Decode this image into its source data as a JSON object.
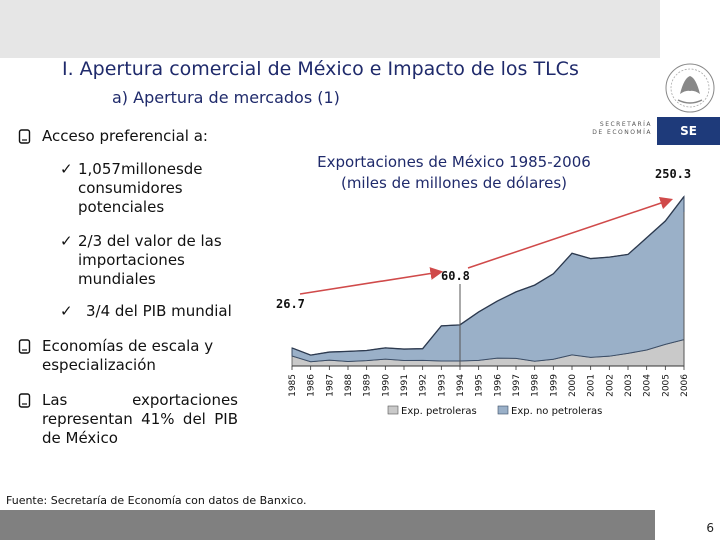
{
  "slide": {
    "title": "I. Apertura comercial de México e Impacto de los TLCs",
    "subtitle": "a) Apertura de mercados (1)",
    "page_number": "6",
    "source": "Fuente: Secretaría de Economía con datos de Banxico.",
    "logo_text": {
      "secretaria": "SECRETARÍA",
      "de_economia": "DE ECONOMÍA",
      "badge": "SE"
    }
  },
  "bullets": [
    {
      "text": "Acceso preferencial a:"
    },
    {
      "text": "Economías de escala y especialización"
    },
    {
      "text": "Las exportaciones representan 41% del PIB de México"
    }
  ],
  "subbullets": [
    {
      "line1": "1,057millonesde",
      "line2": "consumidores",
      "line3": "potenciales"
    },
    {
      "line1": "2/3 del valor de las",
      "line2": "importaciones",
      "line3": "mundiales"
    },
    {
      "line1": "3/4 del PIB mundial"
    }
  ],
  "chart_data": {
    "type": "area",
    "title": "Exportaciones de México 1985-2006 (miles de millones de dólares)",
    "title_line1": "Exportaciones de México 1985-2006",
    "title_line2": "(miles de millones de dólares)",
    "categories": [
      "1985",
      "1986",
      "1987",
      "1988",
      "1989",
      "1990",
      "1991",
      "1992",
      "1993",
      "1994",
      "1995",
      "1996",
      "1997",
      "1998",
      "1999",
      "2000",
      "2001",
      "2002",
      "2003",
      "2004",
      "2005",
      "2006"
    ],
    "series": [
      {
        "name": "Exp. petroleras",
        "values": [
          14.8,
          6.3,
          8.6,
          6.7,
          7.9,
          10.1,
          8.2,
          8.3,
          7.4,
          7.4,
          8.4,
          11.7,
          11.3,
          7.1,
          9.9,
          16.4,
          12.8,
          14.5,
          18.6,
          23.7,
          31.9,
          39.0
        ]
      },
      {
        "name": "Exp. no petroleras",
        "values": [
          11.9,
          9.8,
          12.0,
          14.9,
          15.0,
          16.7,
          16.8,
          17.3,
          51.9,
          53.4,
          71.5,
          84.3,
          98.2,
          112.4,
          126.3,
          150.1,
          145.9,
          146.3,
          146.2,
          165.7,
          182.3,
          211.3
        ]
      }
    ],
    "annotations": [
      {
        "label": "26.7",
        "category": "1985"
      },
      {
        "label": "60.8",
        "category": "1994"
      },
      {
        "label": "250.3",
        "category": "2006"
      }
    ],
    "ylim": [
      0,
      260
    ],
    "legend_position": "bottom",
    "colors": {
      "petroleras": "#c9c9c9",
      "no_petroleras": "#9ab0c8",
      "arrow": "#d04a4a",
      "title": "#1f2a6b"
    }
  }
}
